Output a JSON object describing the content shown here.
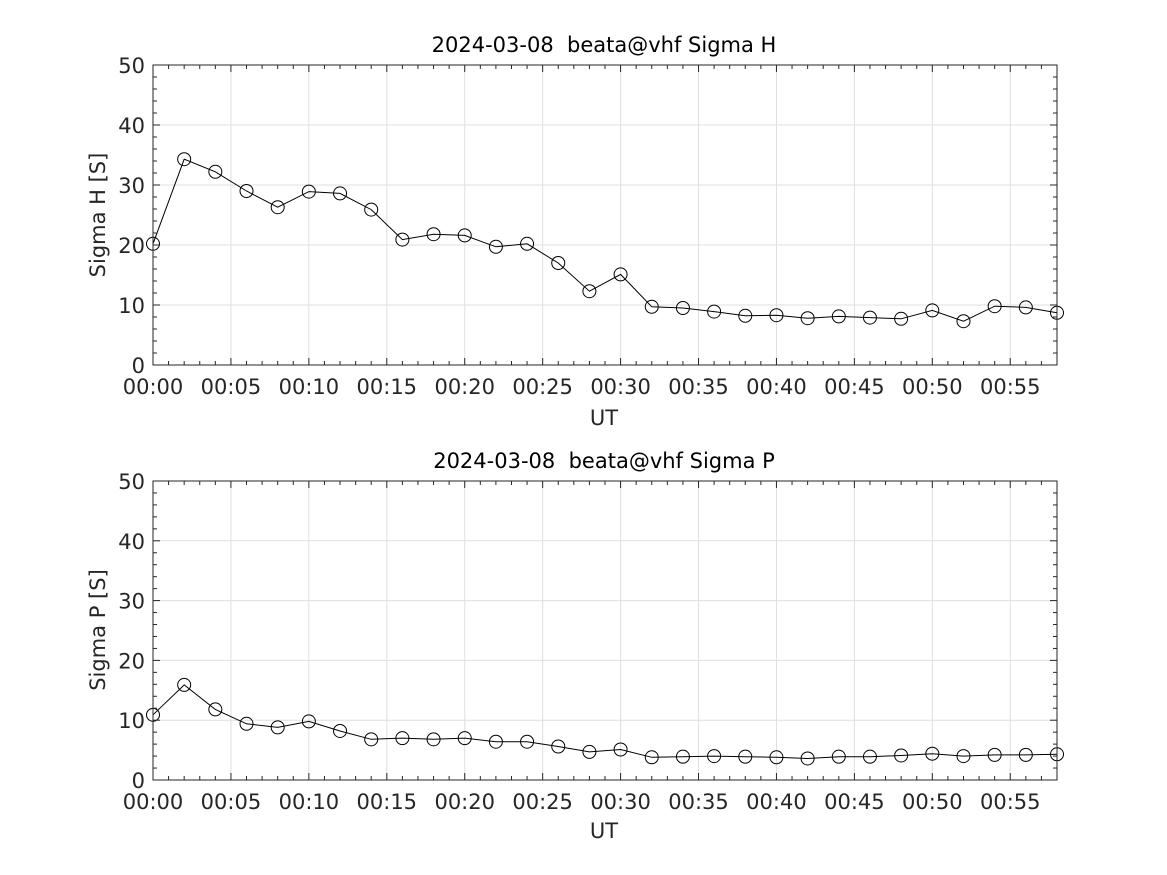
{
  "chart_data": [
    {
      "type": "line",
      "title": "2024-03-08  beata@vhf Sigma H",
      "xlabel": "UT",
      "ylabel": "Sigma H [S]",
      "xlim": [
        "00:00",
        "00:58"
      ],
      "ylim": [
        0,
        50
      ],
      "x_ticks": [
        "00:00",
        "00:05",
        "00:10",
        "00:15",
        "00:20",
        "00:25",
        "00:30",
        "00:35",
        "00:40",
        "00:45",
        "00:50",
        "00:55"
      ],
      "y_ticks": [
        0,
        10,
        20,
        30,
        40,
        50
      ],
      "grid": true,
      "marker": "open-circle",
      "color": "#000000",
      "x": [
        "00:00",
        "00:02",
        "00:04",
        "00:06",
        "00:08",
        "00:10",
        "00:12",
        "00:14",
        "00:16",
        "00:18",
        "00:20",
        "00:22",
        "00:24",
        "00:26",
        "00:28",
        "00:30",
        "00:32",
        "00:34",
        "00:36",
        "00:38",
        "00:40",
        "00:42",
        "00:44",
        "00:46",
        "00:48",
        "00:50",
        "00:52",
        "00:54",
        "00:56",
        "00:58"
      ],
      "values": [
        20.2,
        34.3,
        32.2,
        29.0,
        26.3,
        28.9,
        28.6,
        25.9,
        20.9,
        21.8,
        21.6,
        19.7,
        20.2,
        17.0,
        12.3,
        15.1,
        9.7,
        9.5,
        8.9,
        8.2,
        8.3,
        7.8,
        8.1,
        7.9,
        7.7,
        9.1,
        7.3,
        9.8,
        9.6,
        8.7
      ]
    },
    {
      "type": "line",
      "title": "2024-03-08  beata@vhf Sigma P",
      "xlabel": "UT",
      "ylabel": "Sigma P [S]",
      "xlim": [
        "00:00",
        "00:58"
      ],
      "ylim": [
        0,
        50
      ],
      "x_ticks": [
        "00:00",
        "00:05",
        "00:10",
        "00:15",
        "00:20",
        "00:25",
        "00:30",
        "00:35",
        "00:40",
        "00:45",
        "00:50",
        "00:55"
      ],
      "y_ticks": [
        0,
        10,
        20,
        30,
        40,
        50
      ],
      "grid": true,
      "marker": "open-circle",
      "color": "#000000",
      "x": [
        "00:00",
        "00:02",
        "00:04",
        "00:06",
        "00:08",
        "00:10",
        "00:12",
        "00:14",
        "00:16",
        "00:18",
        "00:20",
        "00:22",
        "00:24",
        "00:26",
        "00:28",
        "00:30",
        "00:32",
        "00:34",
        "00:36",
        "00:38",
        "00:40",
        "00:42",
        "00:44",
        "00:46",
        "00:48",
        "00:50",
        "00:52",
        "00:54",
        "00:56",
        "00:58"
      ],
      "values": [
        10.9,
        15.9,
        11.8,
        9.4,
        8.8,
        9.8,
        8.2,
        6.8,
        7.0,
        6.8,
        7.0,
        6.4,
        6.4,
        5.6,
        4.7,
        5.1,
        3.8,
        3.9,
        4.0,
        3.9,
        3.8,
        3.6,
        3.9,
        3.9,
        4.1,
        4.4,
        4.0,
        4.2,
        4.2,
        4.3
      ]
    }
  ]
}
